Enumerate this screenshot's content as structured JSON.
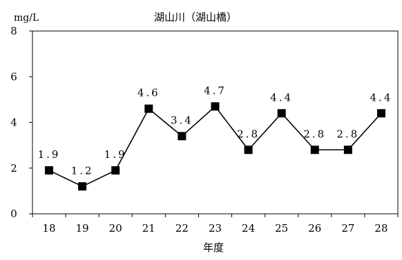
{
  "chart_data": {
    "type": "line",
    "title": "湖山川（湖山橋）",
    "unit": "mg/L",
    "xlabel": "年度",
    "ylabel": "",
    "ylim": [
      0,
      8
    ],
    "yticks": [
      0,
      2,
      4,
      6,
      8
    ],
    "grid": false,
    "legend": "none",
    "categories": [
      "18",
      "19",
      "20",
      "21",
      "22",
      "23",
      "24",
      "25",
      "26",
      "27",
      "28"
    ],
    "series": [
      {
        "values": [
          1.9,
          1.2,
          1.9,
          4.6,
          3.4,
          4.7,
          2.8,
          4.4,
          2.8,
          2.8,
          4.4
        ],
        "labels": [
          "1.9",
          "1.2",
          "1.9",
          "4.6",
          "3.4",
          "4.7",
          "2.8",
          "4.4",
          "2.8",
          "2.8",
          "4.4"
        ],
        "color": "#000000",
        "marker": "square"
      }
    ]
  }
}
